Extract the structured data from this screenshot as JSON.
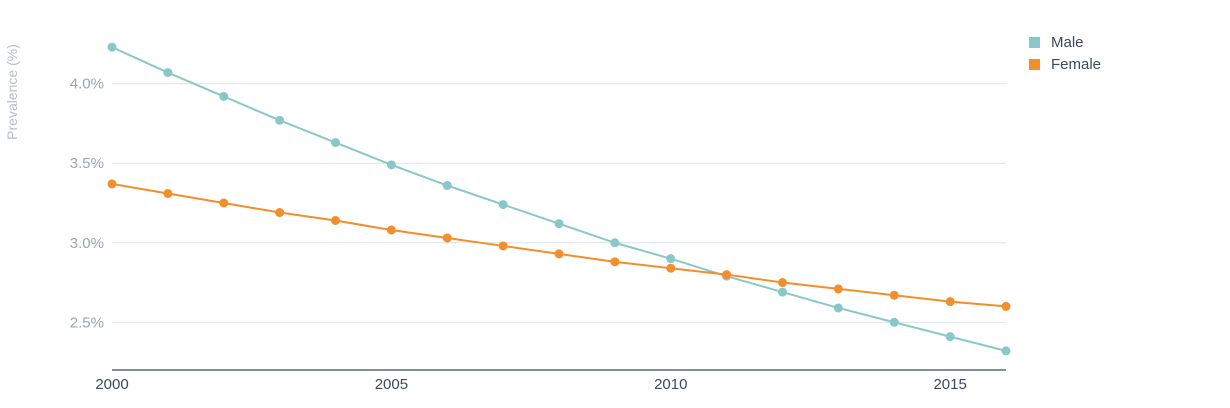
{
  "chart_data": {
    "type": "line",
    "title": "",
    "xlabel": "",
    "ylabel": "Prevalence (%)",
    "x": [
      2000,
      2001,
      2002,
      2003,
      2004,
      2005,
      2006,
      2007,
      2008,
      2009,
      2010,
      2011,
      2012,
      2013,
      2014,
      2015,
      2016
    ],
    "xlim": [
      2000,
      2016
    ],
    "x_ticks": [
      2000,
      2005,
      2010,
      2015
    ],
    "x_tick_labels": [
      "2000",
      "2005",
      "2010",
      "2015"
    ],
    "ylim": [
      2.2,
      4.3
    ],
    "y_ticks": [
      2.5,
      3.0,
      3.5,
      4.0
    ],
    "y_tick_labels": [
      "2.5%",
      "3.0%",
      "3.5%",
      "4.0%"
    ],
    "grid": true,
    "legend_position": "top-right",
    "series": [
      {
        "name": "Male",
        "color": "#8ac7c9",
        "values": [
          4.23,
          4.07,
          3.92,
          3.77,
          3.63,
          3.49,
          3.36,
          3.24,
          3.12,
          3.0,
          2.9,
          2.79,
          2.69,
          2.59,
          2.5,
          2.41,
          2.32
        ]
      },
      {
        "name": "Female",
        "color": "#f28e2b",
        "values": [
          3.37,
          3.31,
          3.25,
          3.19,
          3.14,
          3.08,
          3.03,
          2.98,
          2.93,
          2.88,
          2.84,
          2.8,
          2.75,
          2.71,
          2.67,
          2.63,
          2.6
        ]
      }
    ]
  }
}
